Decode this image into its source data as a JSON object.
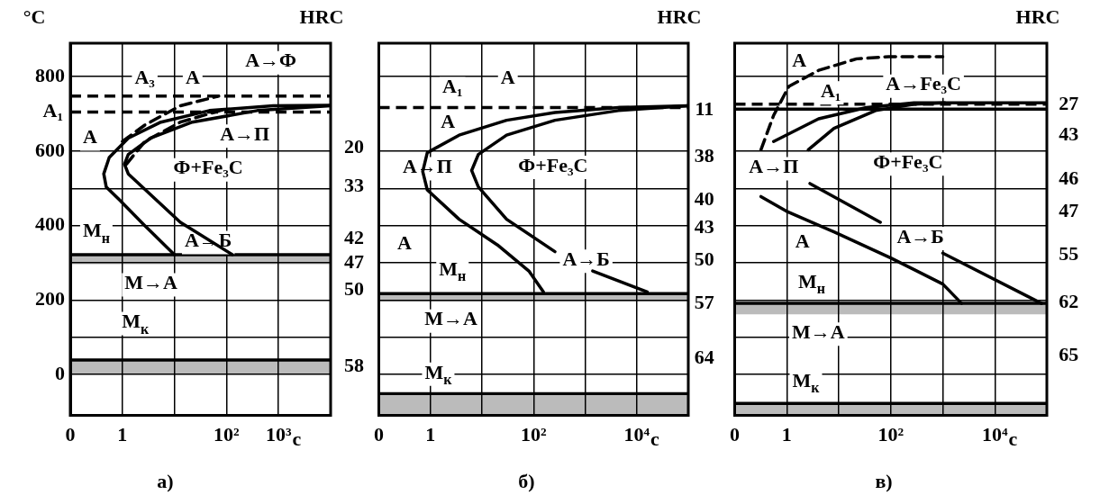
{
  "chart_data": [
    {
      "type": "line",
      "title": "а)",
      "ylabel": "°C",
      "xlabel": "с",
      "y2label": "HRC",
      "log": "x",
      "grid": true,
      "marker": "none",
      "xlim": [
        0.1,
        10000
      ],
      "xticks": [
        {
          "value": 0.1,
          "label": "0"
        },
        {
          "value": 1,
          "label": "1"
        },
        {
          "value": 10,
          "label": null
        },
        {
          "value": 100,
          "label": "10²"
        },
        {
          "value": 1000,
          "label": "10³"
        }
      ],
      "ylim": [
        -110,
        890
      ],
      "yticks": [
        0,
        {
          "value": 100,
          "label": null
        },
        200,
        {
          "value": 300,
          "label": null
        },
        400,
        {
          "value": 500,
          "label": null
        },
        600,
        800
      ],
      "series": [
        {
          "color": "#000000",
          "line_style": "solid",
          "x": [
            10,
            2.7,
            0.87,
            0.49,
            0.44,
            0.56,
            1.3,
            5.5,
            47,
            790,
            10000
          ],
          "values": [
            322,
            400,
            470,
            504,
            539,
            583,
            635,
            678,
            709,
            722,
            723
          ]
        },
        {
          "color": "#000000",
          "line_style": "solid",
          "x": [
            130,
            13,
            1.3,
            1.1,
            1.3,
            3.5,
            22,
            390,
            10000
          ],
          "values": [
            322,
            409,
            539,
            565,
            591,
            635,
            678,
            709,
            722
          ]
        },
        {
          "color": "#000000",
          "line_style": "dashed",
          "x": [
            1.2,
            2.7,
            13,
            95
          ],
          "values": [
            565,
            626,
            678,
            713
          ]
        },
        {
          "color": "#000000",
          "line_style": "dashed",
          "x": [
            1,
            2.7,
            13,
            71
          ],
          "values": [
            626,
            670,
            722,
            748
          ]
        }
      ],
      "ref_lines": [
        {
          "axis": "y",
          "value": 748,
          "line_style": "dashed"
        },
        {
          "axis": "y",
          "value": 705,
          "label": "А₁",
          "line_style": "dashed"
        },
        {
          "axis": "y",
          "value": 322,
          "line_style": "solid"
        },
        {
          "axis": "y",
          "value": 39,
          "line_style": "solid"
        }
      ],
      "bands": [
        {
          "axis": "y",
          "from": 296,
          "to": 322,
          "color": "#bbbbbb"
        },
        {
          "axis": "y",
          "from": 0,
          "to": 39,
          "color": "#bbbbbb"
        }
      ],
      "annotations": [
        "А₃",
        "А",
        "А→Ф",
        "А",
        "А→П",
        "Ф+Fe₃C",
        "М$_{н}$",
        "А→Б",
        "М→А",
        "М$_{к}$",
        "20",
        "33",
        "42",
        "47",
        "50",
        "58"
      ]
    },
    {
      "type": "line",
      "title": "б)",
      "xlabel": "с",
      "y2label": "HRC",
      "log": "x",
      "grid": true,
      "marker": "none",
      "tick_labels": "x",
      "xlim": [
        0.1,
        100000
      ],
      "xticks": [
        {
          "value": 0.1,
          "label": "0"
        },
        {
          "value": 1,
          "label": "1"
        },
        {
          "value": 10,
          "label": null
        },
        {
          "value": 100,
          "label": "10²"
        },
        {
          "value": 1000,
          "label": null
        },
        {
          "value": 10000,
          "label": "10⁴"
        }
      ],
      "ylim": [
        -110,
        890
      ],
      "yticks": [
        {
          "value": 0,
          "label": null
        },
        {
          "value": 100,
          "label": null
        },
        {
          "value": 200,
          "label": null
        },
        {
          "value": 300,
          "label": null
        },
        {
          "value": 400,
          "label": null
        },
        {
          "value": 500,
          "label": null
        },
        {
          "value": 600,
          "label": null
        },
        {
          "value": 800,
          "label": null
        }
      ],
      "series": [
        {
          "color": "#000000",
          "line_style": "solid",
          "x": [
            155,
            81,
            20,
            3.6,
            0.87,
            0.71,
            0.87,
            3.6,
            30,
            260,
            4400,
            100000
          ],
          "values": [
            222,
            278,
            348,
            417,
            496,
            545,
            596,
            643,
            683,
            704,
            717,
            722
          ]
        },
        {
          "color": "#000000",
          "line_style": "solid",
          "x": [
            16000,
            1400,
            600,
            260,
            30,
            8.5,
            6.3,
            8.5,
            30,
            260,
            4400,
            100000
          ],
          "values": [
            222,
            278,
            null,
            330,
            417,
            504,
            548,
            591,
            643,
            683,
            709,
            722
          ]
        }
      ],
      "ref_lines": [
        {
          "axis": "y",
          "value": 717,
          "line_style": "dashed"
        },
        {
          "axis": "y",
          "value": 217,
          "line_style": "solid"
        },
        {
          "axis": "y",
          "value": -52,
          "line_style": "solid"
        }
      ],
      "bands": [
        {
          "axis": "y",
          "from": 196,
          "to": 217,
          "color": "#bbbbbb"
        },
        {
          "axis": "y",
          "from": -110,
          "to": -57,
          "color": "#bbbbbb"
        }
      ],
      "annotations": [
        "А₁",
        "А",
        "А",
        "А→П",
        "Ф+Fe₃C",
        "А",
        "М$_{н}$",
        "А→Б",
        "М→А",
        "М$_{к}$",
        "11",
        "38",
        "40",
        "43",
        "50",
        "57",
        "64"
      ]
    },
    {
      "type": "line",
      "title": "в)",
      "xlabel": "с",
      "y2label": "HRC",
      "log": "x",
      "grid": true,
      "marker": "none",
      "tick_labels": "x",
      "xlim": [
        0.1,
        100000
      ],
      "xticks": [
        {
          "value": 0.1,
          "label": "0"
        },
        {
          "value": 1,
          "label": "1"
        },
        {
          "value": 10,
          "label": null
        },
        {
          "value": 100,
          "label": "10²"
        },
        {
          "value": 1000,
          "label": null
        },
        {
          "value": 10000,
          "label": "10⁴"
        }
      ],
      "ylim": [
        -110,
        890
      ],
      "yticks": [
        {
          "value": 0,
          "label": null
        },
        {
          "value": 100,
          "label": null
        },
        {
          "value": 200,
          "label": null
        },
        {
          "value": 300,
          "label": null
        },
        {
          "value": 400,
          "label": null
        },
        {
          "value": 500,
          "label": null
        },
        {
          "value": 600,
          "label": null
        },
        {
          "value": 800,
          "label": null
        }
      ],
      "series": [
        {
          "color": "#000000",
          "line_style": "dashed",
          "x": [
            0.32,
            0.56,
            1.1,
            4.1,
            22,
            91,
            1000
          ],
          "values": [
            604,
            696,
            774,
            817,
            848,
            854,
            854
          ]
        },
        {
          "color": "#000000",
          "line_style": "solid",
          "x": [
            0.56,
            4.1,
            34,
            280,
            100000
          ],
          "values": [
            626,
            687,
            717,
            730,
            730
          ]
        },
        {
          "color": "#000000",
          "line_style": "solid",
          "x": [
            2.6,
            8.1,
            51,
            280,
            1100
          ],
          "values": [
            604,
            661,
            709,
            726,
            730
          ]
        },
        {
          "color": "#000000",
          "line_style": "solid",
          "x": [
            0.32,
            0.98,
            8.1,
            100,
            1000,
            2300
          ],
          "values": [
            478,
            439,
            383,
            313,
            243,
            191
          ]
        },
        {
          "color": "#000000",
          "line_style": "solid",
          "x": [
            2.8,
            63,
            200,
            1000,
            79000
          ],
          "values": [
            513,
            409,
            null,
            326,
            191
          ]
        }
      ],
      "ref_lines": [
        {
          "axis": "y",
          "value": 726,
          "line_style": "dashed"
        },
        {
          "axis": "y",
          "value": 713,
          "line_style": "solid"
        },
        {
          "axis": "y",
          "value": 191,
          "line_style": "solid"
        },
        {
          "axis": "y",
          "value": -78,
          "line_style": "solid"
        }
      ],
      "bands": [
        {
          "axis": "y",
          "from": 161,
          "to": 191,
          "color": "#bbbbbb"
        },
        {
          "axis": "y",
          "from": -110,
          "to": -78,
          "color": "#bbbbbb"
        }
      ],
      "annotations": [
        "А",
        "А₁",
        "А→Fe₃C",
        "А→П",
        "Ф+Fe₃C",
        "А→Б",
        "А",
        "М$_{н}$",
        "М→А",
        "М$_{к}$",
        "27",
        "43",
        "46",
        "47",
        "55",
        "62",
        "65"
      ]
    }
  ]
}
